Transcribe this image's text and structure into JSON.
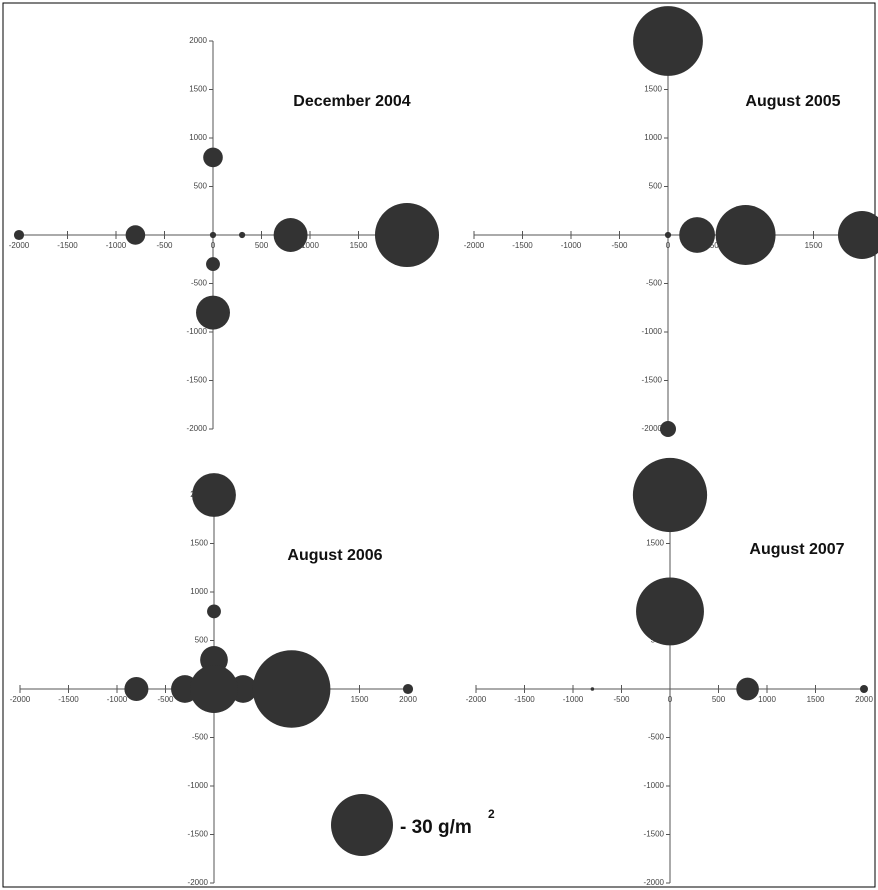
{
  "chart_data": [
    {
      "type": "bubble",
      "title": "December 2004",
      "color": "#333333",
      "x": [
        -2000,
        -800,
        0,
        0,
        300,
        800,
        2000,
        0,
        0
      ],
      "y": [
        0,
        0,
        800,
        0,
        0,
        0,
        0,
        -300,
        -800
      ],
      "sizes": [
        0.8,
        3,
        3,
        0.3,
        0.3,
        9,
        32,
        1.5,
        9
      ],
      "xlim": [
        -2000,
        2000
      ],
      "ylim": [
        -2000,
        2000
      ],
      "xticks": [
        -2000,
        -1500,
        -1000,
        -500,
        0,
        500,
        1000,
        1500,
        2000
      ],
      "yticks": [
        -2000,
        -1500,
        -1000,
        -500,
        500,
        1000,
        1500,
        2000
      ]
    },
    {
      "type": "bubble",
      "title": "August 2005",
      "color": "#333333",
      "x": [
        0,
        0,
        300,
        800,
        2000,
        0
      ],
      "y": [
        2000,
        0,
        0,
        0,
        0,
        -2000
      ],
      "sizes": [
        38,
        0.3,
        10,
        28,
        18,
        2
      ],
      "xlim": [
        -2000,
        2000
      ],
      "ylim": [
        -2000,
        2000
      ],
      "xticks": [
        -2000,
        -1500,
        -1000,
        -500,
        0,
        500,
        1000,
        1500,
        2000
      ],
      "yticks": [
        -2000,
        -1500,
        -1000,
        -500,
        500,
        1000,
        1500,
        2000
      ]
    },
    {
      "type": "bubble",
      "title": "August 2006",
      "color": "#333333",
      "x": [
        0,
        0,
        -800,
        -300,
        0,
        300,
        0,
        800,
        2000
      ],
      "y": [
        2000,
        800,
        0,
        0,
        300,
        0,
        0,
        0,
        0
      ],
      "sizes": [
        15,
        1.5,
        4.5,
        6,
        6,
        6,
        18,
        47,
        0.8
      ],
      "xlim": [
        -2000,
        2000
      ],
      "ylim": [
        -2000,
        2000
      ],
      "xticks": [
        -2000,
        -1500,
        -1000,
        -500,
        0,
        500,
        1000,
        1500,
        2000
      ],
      "yticks": [
        -2000,
        -1500,
        -1000,
        -500,
        500,
        1000,
        1500,
        2000
      ]
    },
    {
      "type": "bubble",
      "title": "August 2007",
      "color": "#333333",
      "x": [
        0,
        0,
        -800,
        800,
        2000
      ],
      "y": [
        2000,
        800,
        0,
        0,
        0
      ],
      "sizes": [
        43,
        36,
        0.1,
        4,
        0.5
      ],
      "xlim": [
        -2000,
        2000
      ],
      "ylim": [
        -2000,
        2000
      ],
      "xticks": [
        -2000,
        -1500,
        -1000,
        -500,
        0,
        500,
        1000,
        1500,
        2000
      ],
      "yticks": [
        -2000,
        -1500,
        -1000,
        -500,
        500,
        1000,
        1500,
        2000
      ]
    }
  ],
  "size_legend": {
    "size": 30,
    "label": "- 30 g/m",
    "superscript": "2"
  }
}
